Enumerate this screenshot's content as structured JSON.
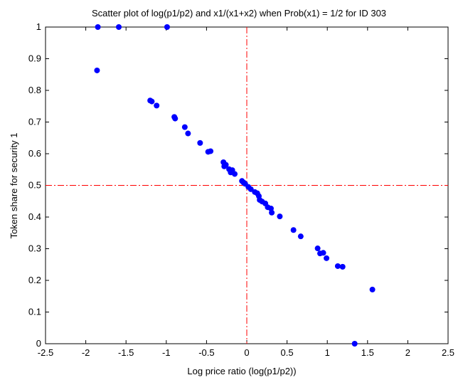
{
  "chart_data": {
    "type": "scatter",
    "title": "Scatter plot of log(p1/p2) and x1/(x1+x2) when Prob(x1) = 1/2 for ID 303",
    "xlabel": "Log price ratio (log(p1/p2))",
    "ylabel": "Token share for security 1",
    "xlim": [
      -2.5,
      2.5
    ],
    "ylim": [
      0,
      1
    ],
    "xticks": [
      "-2.5",
      "-2",
      "-1.5",
      "-1",
      "-0.5",
      "0",
      "0.5",
      "1",
      "1.5",
      "2",
      "2.5"
    ],
    "yticks": [
      "0",
      "0.1",
      "0.2",
      "0.3",
      "0.4",
      "0.5",
      "0.6",
      "0.7",
      "0.8",
      "0.9",
      "1"
    ],
    "grid": false,
    "reference_lines": [
      {
        "axis": "x",
        "value": 0,
        "style": "dash-dot",
        "color": "#ff0000"
      },
      {
        "axis": "y",
        "value": 0.5,
        "style": "dash-dot",
        "color": "#ff0000"
      }
    ],
    "marker_color": "#0000ff",
    "points": [
      [
        -1.85,
        1.0
      ],
      [
        -1.59,
        1.0
      ],
      [
        -0.99,
        1.0
      ],
      [
        -1.86,
        0.863
      ],
      [
        -1.2,
        0.768
      ],
      [
        -1.18,
        0.765
      ],
      [
        -1.12,
        0.752
      ],
      [
        -0.9,
        0.716
      ],
      [
        -0.89,
        0.711
      ],
      [
        -0.77,
        0.684
      ],
      [
        -0.73,
        0.664
      ],
      [
        -0.58,
        0.634
      ],
      [
        -0.48,
        0.606
      ],
      [
        -0.45,
        0.608
      ],
      [
        -0.29,
        0.573
      ],
      [
        -0.28,
        0.56
      ],
      [
        -0.26,
        0.565
      ],
      [
        -0.22,
        0.551
      ],
      [
        -0.2,
        0.541
      ],
      [
        -0.18,
        0.548
      ],
      [
        -0.15,
        0.536
      ],
      [
        -0.06,
        0.514
      ],
      [
        -0.04,
        0.509
      ],
      [
        -0.02,
        0.505
      ],
      [
        0.02,
        0.495
      ],
      [
        0.05,
        0.488
      ],
      [
        0.1,
        0.479
      ],
      [
        0.13,
        0.475
      ],
      [
        0.15,
        0.466
      ],
      [
        0.16,
        0.454
      ],
      [
        0.19,
        0.449
      ],
      [
        0.23,
        0.443
      ],
      [
        0.26,
        0.431
      ],
      [
        0.3,
        0.427
      ],
      [
        0.31,
        0.414
      ],
      [
        0.41,
        0.402
      ],
      [
        0.58,
        0.359
      ],
      [
        0.67,
        0.339
      ],
      [
        0.88,
        0.301
      ],
      [
        0.91,
        0.285
      ],
      [
        0.95,
        0.287
      ],
      [
        0.99,
        0.27
      ],
      [
        1.13,
        0.245
      ],
      [
        1.19,
        0.243
      ],
      [
        1.56,
        0.171
      ],
      [
        1.34,
        0.0
      ]
    ]
  }
}
